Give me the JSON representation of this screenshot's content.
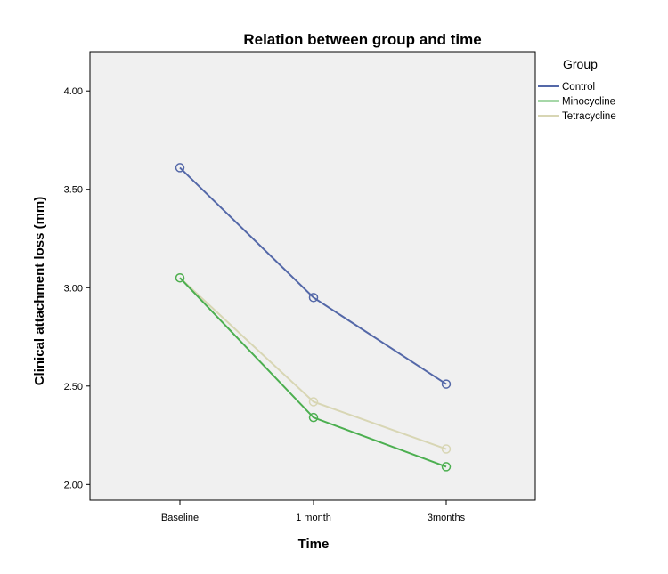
{
  "chart_data": {
    "type": "line",
    "title": "Relation between group and time",
    "xlabel": "Time",
    "ylabel": "Clinical attachment loss (mm)",
    "categories": [
      "Baseline",
      "1 month",
      "3months"
    ],
    "ylim": [
      1.92,
      4.2
    ],
    "yticks": [
      2.0,
      2.5,
      3.0,
      3.5,
      4.0
    ],
    "ytick_labels": [
      "2.00",
      "2.50",
      "3.00",
      "3.50",
      "4.00"
    ],
    "grid": false,
    "legend": {
      "title": "Group",
      "position": "right"
    },
    "series": [
      {
        "name": "Control",
        "color": "#5468a8",
        "values": [
          3.61,
          2.95,
          2.51
        ]
      },
      {
        "name": "Minocycline",
        "color": "#4caf50",
        "values": [
          3.05,
          2.34,
          2.09
        ]
      },
      {
        "name": "Tetracycline",
        "color": "#d8d6b4",
        "values": [
          3.05,
          2.42,
          2.18
        ]
      }
    ],
    "colors": {
      "plot_background": "#f0f0f0",
      "axis": "#000000"
    }
  }
}
